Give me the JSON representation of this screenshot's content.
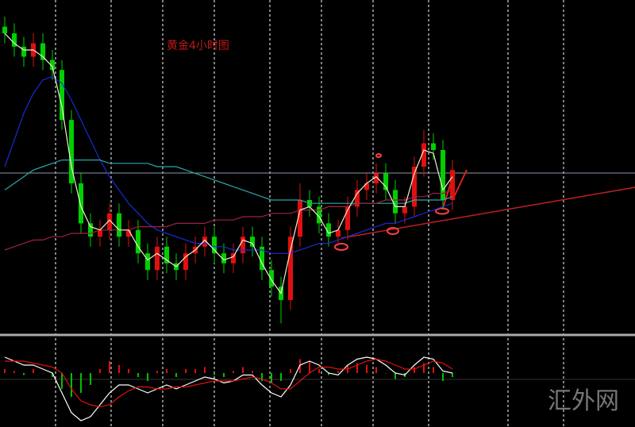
{
  "chart_data": [
    {
      "type": "candlestick",
      "title": "黄金4小时图",
      "categories": [
        null,
        null,
        null,
        null,
        null,
        null,
        null,
        null,
        null,
        null,
        null,
        null,
        null,
        null,
        null,
        null,
        null,
        null,
        null,
        null,
        null,
        null,
        null,
        null,
        null,
        null,
        null,
        null,
        null,
        null,
        null,
        null,
        null,
        null,
        null,
        null,
        null,
        null,
        null,
        null,
        null,
        null,
        null,
        null,
        null,
        null,
        null,
        null
      ],
      "open": [
        92,
        90,
        86,
        83,
        87,
        82,
        79,
        64,
        45,
        33,
        29,
        31,
        36,
        29,
        31,
        24,
        19,
        26,
        21,
        19,
        24,
        26,
        29,
        24,
        21,
        24,
        29,
        26,
        19,
        14,
        10,
        29,
        40,
        38,
        33,
        29,
        31,
        38,
        43,
        45,
        48,
        43,
        36,
        38,
        50,
        57,
        55,
        40
      ],
      "high": [
        95,
        93,
        89,
        90,
        90,
        85,
        82,
        67,
        48,
        36,
        34,
        39,
        39,
        34,
        34,
        27,
        29,
        29,
        24,
        27,
        29,
        32,
        32,
        27,
        27,
        32,
        32,
        29,
        22,
        17,
        32,
        45,
        43,
        41,
        36,
        34,
        41,
        46,
        48,
        51,
        51,
        46,
        41,
        53,
        61,
        60,
        58,
        52
      ],
      "low": [
        87,
        83,
        80,
        80,
        79,
        76,
        61,
        42,
        30,
        26,
        26,
        28,
        26,
        26,
        21,
        16,
        16,
        18,
        16,
        16,
        21,
        23,
        21,
        18,
        18,
        21,
        23,
        16,
        11,
        3,
        7,
        26,
        35,
        30,
        26,
        26,
        28,
        35,
        40,
        42,
        40,
        33,
        33,
        35,
        47,
        52,
        37,
        37
      ],
      "close": [
        90,
        86,
        83,
        87,
        82,
        79,
        64,
        45,
        33,
        29,
        31,
        36,
        29,
        31,
        24,
        19,
        26,
        21,
        19,
        24,
        26,
        29,
        24,
        21,
        24,
        29,
        26,
        19,
        14,
        10,
        29,
        40,
        38,
        33,
        29,
        31,
        38,
        43,
        45,
        48,
        43,
        36,
        38,
        50,
        57,
        55,
        40,
        49
      ],
      "up_color": "#e01010",
      "down_color": "#00d000",
      "lines": [
        {
          "color": "#1a2ad0",
          "values": [
            50,
            58,
            66,
            72,
            76,
            77,
            75,
            70,
            64,
            58,
            52,
            47,
            43,
            39,
            36,
            33,
            31,
            30,
            29,
            28,
            27,
            27,
            26,
            26,
            25,
            25,
            25,
            25,
            24,
            24,
            24,
            25,
            26,
            27,
            27,
            28,
            29,
            30,
            31,
            32,
            33,
            33,
            34,
            35,
            36,
            37,
            38,
            39
          ]
        },
        {
          "color": "#2aa8a8",
          "values": [
            43,
            45,
            47,
            49,
            50,
            51,
            52,
            52,
            52,
            52,
            52,
            51,
            51,
            51,
            51,
            51,
            50,
            50,
            50,
            49,
            48,
            47,
            46,
            45,
            44,
            43,
            42,
            41,
            40,
            40,
            40,
            40,
            39,
            39,
            39,
            39,
            39,
            39,
            39,
            39,
            39,
            39,
            39,
            40,
            40,
            40,
            40,
            41
          ]
        },
        {
          "color": "#a02040",
          "values": [
            25,
            26,
            27,
            28,
            28,
            29,
            29,
            30,
            30,
            30,
            31,
            31,
            31,
            31,
            32,
            32,
            32,
            32,
            33,
            33,
            33,
            33,
            34,
            34,
            34,
            35,
            35,
            35,
            36,
            36,
            36,
            37,
            37,
            37,
            38,
            38,
            38,
            39,
            39,
            39,
            40,
            40,
            40,
            41,
            41,
            42,
            42,
            43
          ]
        },
        {
          "color": "#f0f0d0",
          "values": [
            90,
            87,
            85,
            85,
            83,
            80,
            68,
            50,
            38,
            32,
            31,
            34,
            31,
            31,
            26,
            22,
            24,
            22,
            20,
            23,
            25,
            28,
            25,
            22,
            23,
            28,
            27,
            21,
            16,
            12,
            25,
            37,
            38,
            35,
            30,
            31,
            37,
            42,
            45,
            47,
            44,
            38,
            38,
            48,
            55,
            54,
            43,
            47
          ]
        }
      ],
      "ylim": [
        0,
        100
      ]
    },
    {
      "type": "macd",
      "categories": [
        null,
        null,
        null,
        null,
        null,
        null,
        null,
        null,
        null,
        null,
        null,
        null,
        null,
        null,
        null,
        null,
        null,
        null,
        null,
        null,
        null,
        null,
        null,
        null,
        null,
        null,
        null,
        null,
        null,
        null,
        null,
        null,
        null,
        null,
        null,
        null,
        null,
        null,
        null,
        null,
        null,
        null,
        null,
        null,
        null,
        null,
        null,
        null
      ],
      "histogram": [
        0.1,
        0.05,
        -0.05,
        0.1,
        0,
        -0.1,
        -0.4,
        -0.6,
        -0.5,
        -0.3,
        0.1,
        0.3,
        0.2,
        0.1,
        -0.1,
        -0.2,
        0.05,
        0.1,
        -0.1,
        0.1,
        0.1,
        0.15,
        -0.05,
        -0.1,
        0.05,
        0.15,
        0.05,
        -0.2,
        -0.25,
        -0.2,
        0.1,
        0.35,
        0.3,
        0.1,
        -0.05,
        0.05,
        0.2,
        0.25,
        0.2,
        0.15,
        0,
        -0.15,
        -0.1,
        0.15,
        0.25,
        0.15,
        -0.2,
        -0.1
      ],
      "pos_color": "#e01010",
      "neg_color": "#00c000",
      "lines": [
        {
          "color": "#ffffff",
          "values": [
            0.4,
            0.3,
            0.2,
            0.2,
            0.1,
            0,
            -0.5,
            -1.0,
            -1.2,
            -1.1,
            -0.8,
            -0.5,
            -0.3,
            -0.3,
            -0.4,
            -0.5,
            -0.4,
            -0.3,
            -0.4,
            -0.3,
            -0.2,
            -0.1,
            -0.15,
            -0.25,
            -0.2,
            -0.05,
            -0.05,
            -0.3,
            -0.5,
            -0.6,
            -0.3,
            0.2,
            0.3,
            0.2,
            0,
            -0.05,
            0.2,
            0.35,
            0.4,
            0.35,
            0.2,
            0,
            -0.05,
            0.2,
            0.4,
            0.35,
            0.05,
            0
          ]
        },
        {
          "color": "#e01010",
          "values": [
            0.3,
            0.3,
            0.3,
            0.25,
            0.2,
            0.15,
            0,
            -0.4,
            -0.7,
            -0.8,
            -0.85,
            -0.8,
            -0.6,
            -0.45,
            -0.35,
            -0.35,
            -0.4,
            -0.4,
            -0.35,
            -0.35,
            -0.3,
            -0.25,
            -0.2,
            -0.2,
            -0.2,
            -0.15,
            -0.1,
            -0.15,
            -0.25,
            -0.4,
            -0.4,
            -0.2,
            0,
            0.15,
            0.15,
            0.1,
            0.1,
            0.2,
            0.3,
            0.35,
            0.3,
            0.2,
            0.1,
            0.1,
            0.2,
            0.3,
            0.25,
            0.1
          ]
        }
      ],
      "ylim": [
        -1.3,
        0.9
      ]
    }
  ],
  "watermark": "汇外网"
}
